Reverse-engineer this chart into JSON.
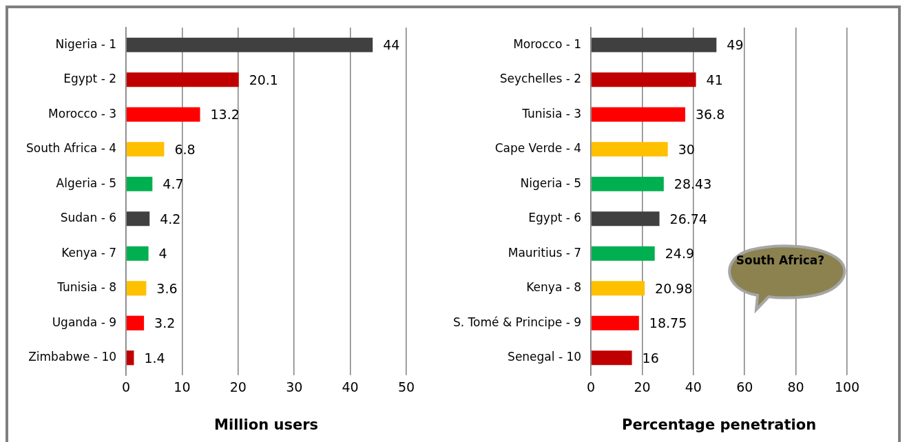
{
  "chart_data": [
    {
      "type": "bar",
      "orientation": "horizontal",
      "xlabel": "Million users",
      "categories": [
        "Nigeria - 1",
        "Egypt - 2",
        "Morocco - 3",
        "South Africa - 4",
        "Algeria - 5",
        "Sudan - 6",
        "Kenya - 7",
        "Tunisia - 8",
        "Uganda - 9",
        "Zimbabwe - 10"
      ],
      "values": [
        44,
        20.1,
        13.2,
        6.8,
        4.7,
        4.2,
        4,
        3.6,
        3.2,
        1.4
      ],
      "colors": [
        "#404040",
        "#c00000",
        "#ff0000",
        "#ffc000",
        "#00b050",
        "#404040",
        "#00b050",
        "#ffc000",
        "#ff0000",
        "#c00000"
      ],
      "xlim": [
        0,
        50
      ],
      "xticks": [
        0,
        10,
        20,
        30,
        40,
        50
      ],
      "grid": "x",
      "data_labels": true,
      "legend": false
    },
    {
      "type": "bar",
      "orientation": "horizontal",
      "xlabel": "Percentage penetration",
      "categories": [
        "Morocco - 1",
        "Seychelles - 2",
        "Tunisia - 3",
        "Cape Verde - 4",
        "Nigeria - 5",
        "Egypt - 6",
        "Mauritius - 7",
        "Kenya - 8",
        "S. Tomé & Principe - 9",
        "Senegal - 10"
      ],
      "values": [
        49,
        41,
        36.8,
        30,
        28.43,
        26.74,
        24.9,
        20.98,
        18.75,
        16
      ],
      "colors": [
        "#404040",
        "#c00000",
        "#ff0000",
        "#ffc000",
        "#00b050",
        "#404040",
        "#00b050",
        "#ffc000",
        "#ff0000",
        "#c00000"
      ],
      "xlim": [
        0,
        100
      ],
      "xticks": [
        0,
        20,
        40,
        60,
        80,
        100
      ],
      "grid": "x",
      "data_labels": true,
      "legend": false,
      "annotations": [
        "South Africa?"
      ]
    }
  ]
}
